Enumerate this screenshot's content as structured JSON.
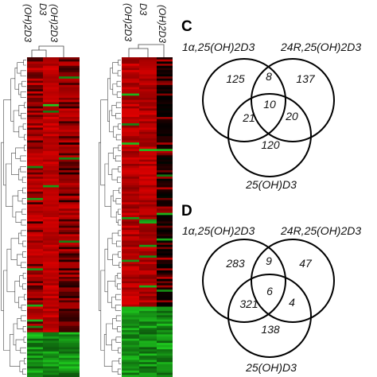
{
  "heatmaps": {
    "left": {
      "column_labels": [
        "(OH)2D3",
        "D3",
        "(OH)2D3"
      ],
      "colors": {
        "up": "#e00000",
        "down": "#1ec81e",
        "zero": "#000000"
      }
    },
    "right": {
      "column_labels": [
        "(OH)2D3",
        "D3",
        "(OH)2D3"
      ],
      "colors": {
        "up": "#e00000",
        "down": "#1ec81e",
        "zero": "#000000"
      }
    }
  },
  "panel_c": {
    "letter": "C",
    "label_left": "1α,25(OH)2D3",
    "label_right": "24R,25(OH)2D3",
    "label_bottom": "25(OH)D3",
    "counts": {
      "left_only": "125",
      "right_only": "137",
      "bottom_only": "120",
      "left_right": "8",
      "left_bottom": "21",
      "right_bottom": "20",
      "all": "10"
    }
  },
  "panel_d": {
    "letter": "D",
    "label_left": "1α,25(OH)2D3",
    "label_right": "24R,25(OH)2D3",
    "label_bottom": "25(OH)D3",
    "counts": {
      "left_only": "283",
      "right_only": "47",
      "bottom_only": "138",
      "left_right": "9",
      "left_bottom": "321",
      "right_bottom": "4",
      "all": "6"
    }
  }
}
